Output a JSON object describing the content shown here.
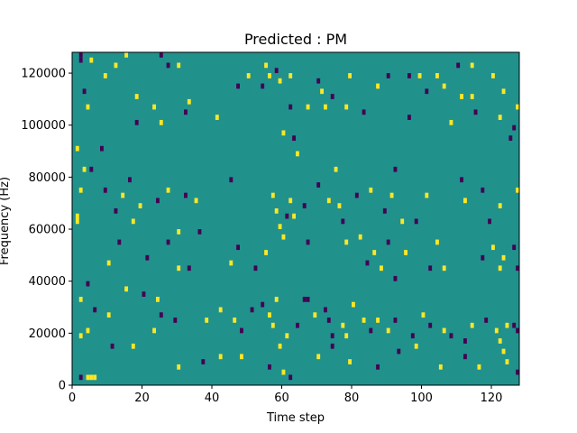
{
  "chart_data": {
    "type": "heatmap",
    "title": "Predicted : PM",
    "xlabel": "Time step",
    "ylabel": "Frequency (Hz)",
    "xlim": [
      0,
      128
    ],
    "ylim": [
      0,
      128000
    ],
    "x_ticks": [
      0,
      20,
      40,
      60,
      80,
      100,
      120
    ],
    "x_tick_labels": [
      "0",
      "20",
      "40",
      "60",
      "80",
      "100",
      "120"
    ],
    "y_ticks": [
      0,
      20000,
      40000,
      60000,
      80000,
      100000,
      120000
    ],
    "y_tick_labels": [
      "0",
      "20000",
      "40000",
      "60000",
      "80000",
      "100000",
      "120000"
    ],
    "grid": false,
    "colors": {
      "background": "#21918c",
      "high": "#fde725",
      "low": "#440154"
    },
    "cell_height_hz": 2000,
    "note_cells": [
      {
        "t": 2,
        "f": 126000,
        "v": "low"
      },
      {
        "t": 2,
        "f": 124000,
        "v": "low"
      },
      {
        "t": 5,
        "f": 124000,
        "v": "high"
      },
      {
        "t": 12,
        "f": 122000,
        "v": "high"
      },
      {
        "t": 15,
        "f": 126000,
        "v": "high"
      },
      {
        "t": 25,
        "f": 126000,
        "v": "low"
      },
      {
        "t": 27,
        "f": 122000,
        "v": "low"
      },
      {
        "t": 30,
        "f": 122000,
        "v": "high"
      },
      {
        "t": 9,
        "f": 118000,
        "v": "high"
      },
      {
        "t": 3,
        "f": 112000,
        "v": "low"
      },
      {
        "t": 4,
        "f": 106000,
        "v": "high"
      },
      {
        "t": 18,
        "f": 110000,
        "v": "high"
      },
      {
        "t": 23,
        "f": 106000,
        "v": "high"
      },
      {
        "t": 32,
        "f": 104000,
        "v": "low"
      },
      {
        "t": 33,
        "f": 108000,
        "v": "high"
      },
      {
        "t": 41,
        "f": 102000,
        "v": "high"
      },
      {
        "t": 18,
        "f": 100000,
        "v": "low"
      },
      {
        "t": 25,
        "f": 100000,
        "v": "high"
      },
      {
        "t": 47,
        "f": 114000,
        "v": "low"
      },
      {
        "t": 50,
        "f": 118000,
        "v": "high"
      },
      {
        "t": 54,
        "f": 114000,
        "v": "low"
      },
      {
        "t": 55,
        "f": 122000,
        "v": "high"
      },
      {
        "t": 56,
        "f": 118000,
        "v": "high"
      },
      {
        "t": 58,
        "f": 120000,
        "v": "low"
      },
      {
        "t": 59,
        "f": 116000,
        "v": "high"
      },
      {
        "t": 62,
        "f": 118000,
        "v": "high"
      },
      {
        "t": 60,
        "f": 96000,
        "v": "high"
      },
      {
        "t": 62,
        "f": 106000,
        "v": "low"
      },
      {
        "t": 63,
        "f": 94000,
        "v": "low"
      },
      {
        "t": 64,
        "f": 88000,
        "v": "high"
      },
      {
        "t": 67,
        "f": 106000,
        "v": "high"
      },
      {
        "t": 72,
        "f": 106000,
        "v": "high"
      },
      {
        "t": 70,
        "f": 116000,
        "v": "low"
      },
      {
        "t": 71,
        "f": 112000,
        "v": "high"
      },
      {
        "t": 74,
        "f": 110000,
        "v": "low"
      },
      {
        "t": 79,
        "f": 118000,
        "v": "high"
      },
      {
        "t": 78,
        "f": 106000,
        "v": "high"
      },
      {
        "t": 83,
        "f": 104000,
        "v": "low"
      },
      {
        "t": 87,
        "f": 114000,
        "v": "high"
      },
      {
        "t": 90,
        "f": 118000,
        "v": "low"
      },
      {
        "t": 96,
        "f": 118000,
        "v": "low"
      },
      {
        "t": 99,
        "f": 118000,
        "v": "high"
      },
      {
        "t": 101,
        "f": 112000,
        "v": "low"
      },
      {
        "t": 104,
        "f": 118000,
        "v": "high"
      },
      {
        "t": 106,
        "f": 114000,
        "v": "high"
      },
      {
        "t": 110,
        "f": 122000,
        "v": "low"
      },
      {
        "t": 114,
        "f": 122000,
        "v": "high"
      },
      {
        "t": 111,
        "f": 110000,
        "v": "high"
      },
      {
        "t": 114,
        "f": 110000,
        "v": "high"
      },
      {
        "t": 115,
        "f": 104000,
        "v": "low"
      },
      {
        "t": 120,
        "f": 118000,
        "v": "high"
      },
      {
        "t": 123,
        "f": 112000,
        "v": "high"
      },
      {
        "t": 122,
        "f": 102000,
        "v": "high"
      },
      {
        "t": 127,
        "f": 106000,
        "v": "high"
      },
      {
        "t": 96,
        "f": 102000,
        "v": "low"
      },
      {
        "t": 108,
        "f": 100000,
        "v": "high"
      },
      {
        "t": 126,
        "f": 98000,
        "v": "low"
      },
      {
        "t": 125,
        "f": 94000,
        "v": "low"
      },
      {
        "t": 1,
        "f": 90000,
        "v": "high"
      },
      {
        "t": 8,
        "f": 90000,
        "v": "low"
      },
      {
        "t": 3,
        "f": 82000,
        "v": "high"
      },
      {
        "t": 5,
        "f": 82000,
        "v": "low"
      },
      {
        "t": 16,
        "f": 78000,
        "v": "low"
      },
      {
        "t": 2,
        "f": 74000,
        "v": "high"
      },
      {
        "t": 9,
        "f": 74000,
        "v": "low"
      },
      {
        "t": 14,
        "f": 72000,
        "v": "high"
      },
      {
        "t": 19,
        "f": 68000,
        "v": "high"
      },
      {
        "t": 24,
        "f": 70000,
        "v": "low"
      },
      {
        "t": 27,
        "f": 74000,
        "v": "high"
      },
      {
        "t": 32,
        "f": 72000,
        "v": "low"
      },
      {
        "t": 35,
        "f": 70000,
        "v": "high"
      },
      {
        "t": 45,
        "f": 78000,
        "v": "low"
      },
      {
        "t": 12,
        "f": 66000,
        "v": "low"
      },
      {
        "t": 1,
        "f": 64000,
        "v": "high"
      },
      {
        "t": 1,
        "f": 62000,
        "v": "high"
      },
      {
        "t": 17,
        "f": 62000,
        "v": "high"
      },
      {
        "t": 30,
        "f": 58000,
        "v": "high"
      },
      {
        "t": 36,
        "f": 58000,
        "v": "low"
      },
      {
        "t": 27,
        "f": 54000,
        "v": "low"
      },
      {
        "t": 13,
        "f": 54000,
        "v": "low"
      },
      {
        "t": 21,
        "f": 48000,
        "v": "low"
      },
      {
        "t": 10,
        "f": 46000,
        "v": "high"
      },
      {
        "t": 30,
        "f": 44000,
        "v": "high"
      },
      {
        "t": 33,
        "f": 44000,
        "v": "low"
      },
      {
        "t": 47,
        "f": 52000,
        "v": "low"
      },
      {
        "t": 45,
        "f": 46000,
        "v": "high"
      },
      {
        "t": 52,
        "f": 44000,
        "v": "low"
      },
      {
        "t": 55,
        "f": 50000,
        "v": "high"
      },
      {
        "t": 57,
        "f": 72000,
        "v": "high"
      },
      {
        "t": 58,
        "f": 66000,
        "v": "high"
      },
      {
        "t": 59,
        "f": 60000,
        "v": "high"
      },
      {
        "t": 60,
        "f": 56000,
        "v": "high"
      },
      {
        "t": 61,
        "f": 64000,
        "v": "low"
      },
      {
        "t": 62,
        "f": 70000,
        "v": "high"
      },
      {
        "t": 63,
        "f": 64000,
        "v": "high"
      },
      {
        "t": 66,
        "f": 68000,
        "v": "low"
      },
      {
        "t": 67,
        "f": 54000,
        "v": "low"
      },
      {
        "t": 70,
        "f": 76000,
        "v": "low"
      },
      {
        "t": 73,
        "f": 70000,
        "v": "high"
      },
      {
        "t": 75,
        "f": 82000,
        "v": "high"
      },
      {
        "t": 76,
        "f": 68000,
        "v": "high"
      },
      {
        "t": 77,
        "f": 62000,
        "v": "low"
      },
      {
        "t": 81,
        "f": 72000,
        "v": "low"
      },
      {
        "t": 85,
        "f": 74000,
        "v": "high"
      },
      {
        "t": 89,
        "f": 66000,
        "v": "low"
      },
      {
        "t": 91,
        "f": 72000,
        "v": "high"
      },
      {
        "t": 92,
        "f": 82000,
        "v": "low"
      },
      {
        "t": 94,
        "f": 62000,
        "v": "high"
      },
      {
        "t": 98,
        "f": 62000,
        "v": "low"
      },
      {
        "t": 101,
        "f": 72000,
        "v": "high"
      },
      {
        "t": 111,
        "f": 78000,
        "v": "low"
      },
      {
        "t": 112,
        "f": 70000,
        "v": "high"
      },
      {
        "t": 117,
        "f": 74000,
        "v": "low"
      },
      {
        "t": 122,
        "f": 68000,
        "v": "high"
      },
      {
        "t": 127,
        "f": 74000,
        "v": "high"
      },
      {
        "t": 119,
        "f": 62000,
        "v": "low"
      },
      {
        "t": 78,
        "f": 54000,
        "v": "high"
      },
      {
        "t": 82,
        "f": 56000,
        "v": "high"
      },
      {
        "t": 86,
        "f": 50000,
        "v": "high"
      },
      {
        "t": 90,
        "f": 54000,
        "v": "low"
      },
      {
        "t": 95,
        "f": 50000,
        "v": "high"
      },
      {
        "t": 104,
        "f": 54000,
        "v": "high"
      },
      {
        "t": 117,
        "f": 48000,
        "v": "low"
      },
      {
        "t": 120,
        "f": 52000,
        "v": "high"
      },
      {
        "t": 123,
        "f": 48000,
        "v": "high"
      },
      {
        "t": 126,
        "f": 52000,
        "v": "low"
      },
      {
        "t": 127,
        "f": 44000,
        "v": "low"
      },
      {
        "t": 122,
        "f": 44000,
        "v": "high"
      },
      {
        "t": 102,
        "f": 44000,
        "v": "low"
      },
      {
        "t": 106,
        "f": 44000,
        "v": "high"
      },
      {
        "t": 92,
        "f": 40000,
        "v": "low"
      },
      {
        "t": 88,
        "f": 44000,
        "v": "high"
      },
      {
        "t": 84,
        "f": 46000,
        "v": "low"
      },
      {
        "t": 4,
        "f": 38000,
        "v": "low"
      },
      {
        "t": 6,
        "f": 28000,
        "v": "low"
      },
      {
        "t": 2,
        "f": 32000,
        "v": "high"
      },
      {
        "t": 15,
        "f": 36000,
        "v": "high"
      },
      {
        "t": 20,
        "f": 34000,
        "v": "low"
      },
      {
        "t": 24,
        "f": 32000,
        "v": "high"
      },
      {
        "t": 10,
        "f": 26000,
        "v": "high"
      },
      {
        "t": 4,
        "f": 20000,
        "v": "high"
      },
      {
        "t": 2,
        "f": 18000,
        "v": "high"
      },
      {
        "t": 11,
        "f": 14000,
        "v": "low"
      },
      {
        "t": 17,
        "f": 14000,
        "v": "high"
      },
      {
        "t": 23,
        "f": 20000,
        "v": "high"
      },
      {
        "t": 25,
        "f": 26000,
        "v": "low"
      },
      {
        "t": 29,
        "f": 24000,
        "v": "low"
      },
      {
        "t": 38,
        "f": 24000,
        "v": "high"
      },
      {
        "t": 42,
        "f": 28000,
        "v": "high"
      },
      {
        "t": 46,
        "f": 24000,
        "v": "high"
      },
      {
        "t": 48,
        "f": 20000,
        "v": "low"
      },
      {
        "t": 51,
        "f": 28000,
        "v": "low"
      },
      {
        "t": 54,
        "f": 30000,
        "v": "low"
      },
      {
        "t": 56,
        "f": 26000,
        "v": "high"
      },
      {
        "t": 57,
        "f": 22000,
        "v": "high"
      },
      {
        "t": 58,
        "f": 32000,
        "v": "high"
      },
      {
        "t": 59,
        "f": 14000,
        "v": "high"
      },
      {
        "t": 61,
        "f": 18000,
        "v": "high"
      },
      {
        "t": 64,
        "f": 22000,
        "v": "low"
      },
      {
        "t": 66,
        "f": 32000,
        "v": "low"
      },
      {
        "t": 67,
        "f": 32000,
        "v": "low"
      },
      {
        "t": 69,
        "f": 26000,
        "v": "high"
      },
      {
        "t": 72,
        "f": 28000,
        "v": "low"
      },
      {
        "t": 73,
        "f": 24000,
        "v": "low"
      },
      {
        "t": 74,
        "f": 18000,
        "v": "low"
      },
      {
        "t": 77,
        "f": 22000,
        "v": "high"
      },
      {
        "t": 78,
        "f": 18000,
        "v": "high"
      },
      {
        "t": 80,
        "f": 30000,
        "v": "high"
      },
      {
        "t": 83,
        "f": 24000,
        "v": "high"
      },
      {
        "t": 85,
        "f": 20000,
        "v": "low"
      },
      {
        "t": 87,
        "f": 24000,
        "v": "high"
      },
      {
        "t": 90,
        "f": 20000,
        "v": "high"
      },
      {
        "t": 92,
        "f": 24000,
        "v": "low"
      },
      {
        "t": 97,
        "f": 18000,
        "v": "low"
      },
      {
        "t": 100,
        "f": 26000,
        "v": "high"
      },
      {
        "t": 102,
        "f": 22000,
        "v": "low"
      },
      {
        "t": 106,
        "f": 20000,
        "v": "high"
      },
      {
        "t": 108,
        "f": 18000,
        "v": "low"
      },
      {
        "t": 112,
        "f": 16000,
        "v": "low"
      },
      {
        "t": 114,
        "f": 22000,
        "v": "high"
      },
      {
        "t": 118,
        "f": 24000,
        "v": "low"
      },
      {
        "t": 121,
        "f": 20000,
        "v": "high"
      },
      {
        "t": 122,
        "f": 16000,
        "v": "high"
      },
      {
        "t": 123,
        "f": 12000,
        "v": "high"
      },
      {
        "t": 124,
        "f": 22000,
        "v": "high"
      },
      {
        "t": 126,
        "f": 22000,
        "v": "low"
      },
      {
        "t": 127,
        "f": 20000,
        "v": "low"
      },
      {
        "t": 2,
        "f": 2000,
        "v": "low"
      },
      {
        "t": 4,
        "f": 2000,
        "v": "high"
      },
      {
        "t": 5,
        "f": 2000,
        "v": "high"
      },
      {
        "t": 6,
        "f": 2000,
        "v": "high"
      },
      {
        "t": 30,
        "f": 6000,
        "v": "high"
      },
      {
        "t": 37,
        "f": 8000,
        "v": "low"
      },
      {
        "t": 42,
        "f": 10000,
        "v": "high"
      },
      {
        "t": 48,
        "f": 10000,
        "v": "high"
      },
      {
        "t": 56,
        "f": 6000,
        "v": "low"
      },
      {
        "t": 60,
        "f": 4000,
        "v": "high"
      },
      {
        "t": 62,
        "f": 2000,
        "v": "low"
      },
      {
        "t": 70,
        "f": 10000,
        "v": "high"
      },
      {
        "t": 74,
        "f": 14000,
        "v": "low"
      },
      {
        "t": 79,
        "f": 8000,
        "v": "high"
      },
      {
        "t": 87,
        "f": 6000,
        "v": "low"
      },
      {
        "t": 93,
        "f": 12000,
        "v": "low"
      },
      {
        "t": 105,
        "f": 6000,
        "v": "high"
      },
      {
        "t": 116,
        "f": 6000,
        "v": "high"
      },
      {
        "t": 124,
        "f": 8000,
        "v": "high"
      },
      {
        "t": 127,
        "f": 4000,
        "v": "low"
      },
      {
        "t": 112,
        "f": 10000,
        "v": "low"
      },
      {
        "t": 98,
        "f": 14000,
        "v": "high"
      }
    ]
  }
}
